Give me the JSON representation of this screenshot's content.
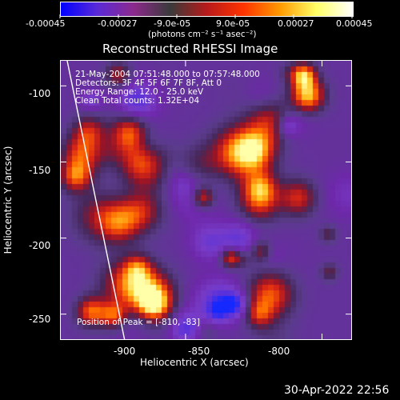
{
  "colorbar": {
    "tick_labels": [
      "-0.00045",
      "-0.00027",
      "-9.0e-05",
      "9.0e-05",
      "0.00027",
      "0.00045"
    ],
    "unit_label": "(photons cm⁻² s⁻¹ asec⁻²)",
    "colors": [
      "#0000ff",
      "#5a2ad8",
      "#8c2a8c",
      "#3a3a3a",
      "#b81a1a",
      "#ff3300",
      "#ff9900",
      "#ffff66",
      "#ffffff"
    ]
  },
  "image": {
    "title": "Reconstructed RHESSI Image",
    "info_lines": [
      "21-May-2004 07:51:48.000 to 07:57:48.000",
      "Detectors: 3F 4F 5F 6F 7F 8F, Att 0",
      "Energy Range: 12.0 - 25.0 keV",
      "Clean    Total counts: 1.32E+04"
    ],
    "peak_label": "Position of Peak = [-810, -83]",
    "x_label": "Heliocentric X (arcsec)",
    "y_label": "Heliocentric Y (arcsec)",
    "x_ticks": [
      "-900",
      "-850",
      "-800"
    ],
    "y_ticks": [
      "-100",
      "-150",
      "-200",
      "-250"
    ],
    "x_tick_values": [
      -900,
      -850,
      -800
    ],
    "y_tick_values": [
      -100,
      -150,
      -200,
      -250
    ],
    "x_range": [
      -946,
      -839
    ],
    "y_range": [
      -267,
      -83
    ],
    "limb_visible": true
  },
  "footer": {
    "timestamp": "30-Apr-2022 22:56"
  }
}
